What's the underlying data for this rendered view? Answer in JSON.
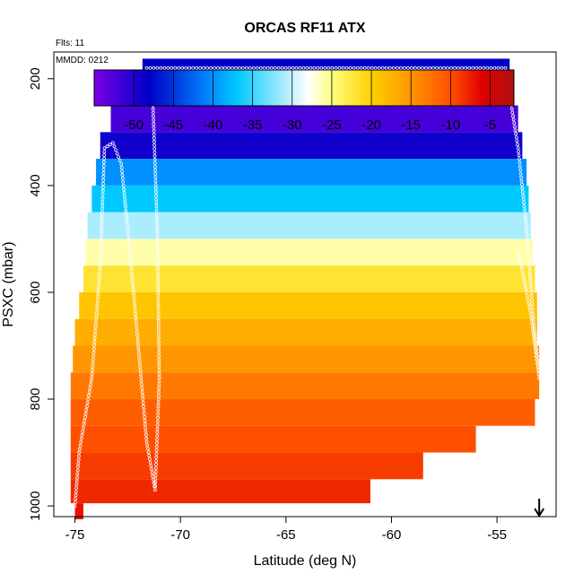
{
  "chart_data": {
    "type": "heatmap",
    "title": "ORCAS RF11 ATX",
    "annotations": {
      "flights": "Flts: 11",
      "date": "MMDD: 0212"
    },
    "xlabel": "Latitude (deg N)",
    "ylabel": "PSXC (mbar)",
    "xlim": [
      -76,
      -52.2
    ],
    "ylim": [
      1020,
      150
    ],
    "x_ticks": [
      -75,
      -70,
      -65,
      -60,
      -55
    ],
    "y_ticks": [
      200,
      400,
      600,
      800,
      1000
    ],
    "colorbar": {
      "range": [
        -55,
        -2
      ],
      "ticks": [
        -50,
        -45,
        -40,
        -35,
        -30,
        -25,
        -20,
        -15,
        -10,
        -5
      ],
      "colors": [
        "#7a00e6",
        "#0000c8",
        "#0090ff",
        "#00c8ff",
        "#ffffff",
        "#ffff80",
        "#ffd000",
        "#ff9500",
        "#ff5000",
        "#e00000",
        "#b01010"
      ],
      "color_stops": [
        -55,
        -48,
        -40,
        -37,
        -28,
        -25,
        -20,
        -15,
        -10,
        -6,
        -2
      ]
    },
    "layers": [
      {
        "p": 175,
        "lat": [
          -71.8,
          -54.4
        ],
        "temp": -48
      },
      {
        "p": 225,
        "lat": [
          -72.8,
          -54.2
        ],
        "temp": -49
      },
      {
        "p": 275,
        "lat": [
          -73.3,
          -54.0
        ],
        "temp": -52
      },
      {
        "p": 325,
        "lat": [
          -73.8,
          -53.8
        ],
        "temp": -49
      },
      {
        "p": 375,
        "lat": [
          -74.0,
          -53.6
        ],
        "temp": -40
      },
      {
        "p": 425,
        "lat": [
          -74.2,
          -53.5
        ],
        "temp": -37
      },
      {
        "p": 475,
        "lat": [
          -74.4,
          -53.4
        ],
        "temp": -31
      },
      {
        "p": 525,
        "lat": [
          -74.5,
          -53.3
        ],
        "temp": -26
      },
      {
        "p": 575,
        "lat": [
          -74.6,
          -53.2
        ],
        "temp": -22
      },
      {
        "p": 625,
        "lat": [
          -74.8,
          -53.1
        ],
        "temp": -19
      },
      {
        "p": 675,
        "lat": [
          -75.0,
          -53.1
        ],
        "temp": -17
      },
      {
        "p": 725,
        "lat": [
          -75.1,
          -53.0
        ],
        "temp": -15
      },
      {
        "p": 775,
        "lat": [
          -75.2,
          -53.0
        ],
        "temp": -13
      },
      {
        "p": 825,
        "lat": [
          -75.2,
          -53.2
        ],
        "temp": -11
      },
      {
        "p": 875,
        "lat": [
          -75.2,
          -56.0
        ],
        "temp": -10
      },
      {
        "p": 925,
        "lat": [
          -75.2,
          -58.5
        ],
        "temp": -9
      },
      {
        "p": 975,
        "lat": [
          -75.2,
          -61.0
        ],
        "temp": -8
      },
      {
        "p": 1015,
        "lat": [
          -75.0,
          -74.6
        ],
        "temp": -7
      }
    ],
    "flight_track": [
      [
        -75.0,
        1000
      ],
      [
        -74.8,
        900
      ],
      [
        -74.2,
        760
      ],
      [
        -73.8,
        550
      ],
      [
        -73.6,
        330
      ],
      [
        -73.2,
        320
      ],
      [
        -72.8,
        360
      ],
      [
        -72.4,
        520
      ],
      [
        -72.0,
        700
      ],
      [
        -71.6,
        880
      ],
      [
        -71.2,
        970
      ],
      [
        -71.0,
        760
      ],
      [
        -71.1,
        480
      ],
      [
        -71.3,
        250
      ],
      [
        -71.6,
        180
      ],
      [
        -64.0,
        180
      ],
      [
        -57.0,
        180
      ],
      [
        -54.6,
        180
      ],
      [
        -54.4,
        230
      ],
      [
        -54.0,
        330
      ],
      [
        -53.6,
        480
      ],
      [
        -53.3,
        640
      ],
      [
        -53.0,
        760
      ],
      [
        -53.4,
        640
      ],
      [
        -54.0,
        520
      ]
    ],
    "surface_arrow_lat": -53.0,
    "legend": "none"
  }
}
